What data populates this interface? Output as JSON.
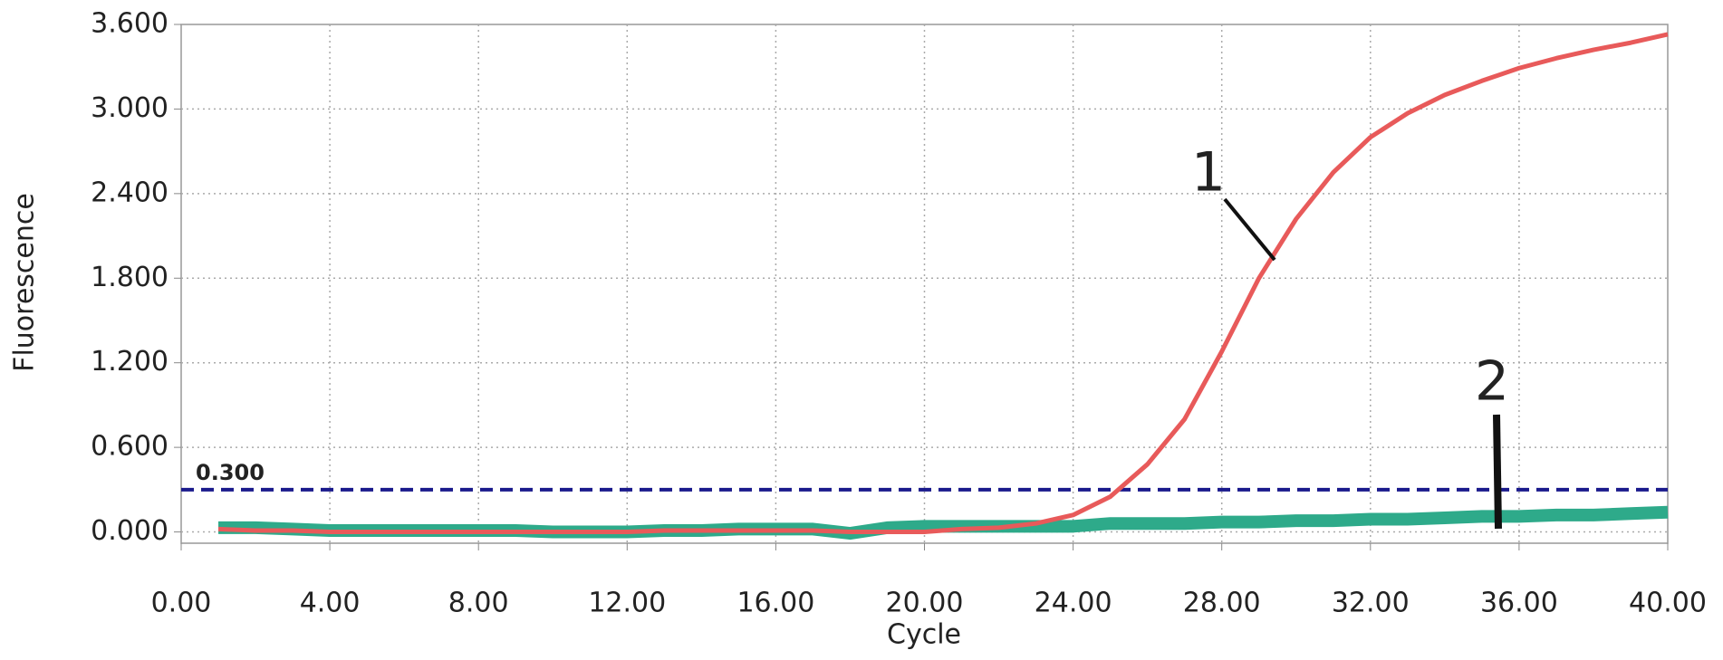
{
  "chart_data": {
    "type": "line",
    "x_label": "Cycle",
    "y_label": "Fluorescence",
    "x": [
      1,
      2,
      3,
      4,
      5,
      6,
      7,
      8,
      9,
      10,
      11,
      12,
      13,
      14,
      15,
      16,
      17,
      18,
      19,
      20,
      21,
      22,
      23,
      24,
      25,
      26,
      27,
      28,
      29,
      30,
      31,
      32,
      33,
      34,
      35,
      36,
      37,
      38,
      39,
      40
    ],
    "series": [
      {
        "color": "#e85a5a",
        "values": [
          0.02,
          0.01,
          0.01,
          0.0,
          0.0,
          0.0,
          0.0,
          0.0,
          0.0,
          0.0,
          0.0,
          0.0,
          0.01,
          0.01,
          0.01,
          0.01,
          0.01,
          0.0,
          0.0,
          0.0,
          0.02,
          0.03,
          0.06,
          0.12,
          0.25,
          0.48,
          0.8,
          1.28,
          1.8,
          2.22,
          2.55,
          2.8,
          2.97,
          3.1,
          3.2,
          3.29,
          3.36,
          3.42,
          3.47,
          3.53
        ]
      },
      {
        "color": "#2eaa8a",
        "values": [
          0.03,
          0.03,
          0.02,
          0.01,
          0.01,
          0.01,
          0.01,
          0.01,
          0.01,
          0.0,
          0.0,
          0.0,
          0.01,
          0.01,
          0.02,
          0.02,
          0.02,
          -0.01,
          0.03,
          0.04,
          0.04,
          0.04,
          0.04,
          0.04,
          0.06,
          0.06,
          0.06,
          0.07,
          0.07,
          0.08,
          0.08,
          0.09,
          0.09,
          0.1,
          0.11,
          0.11,
          0.12,
          0.12,
          0.13,
          0.14
        ]
      }
    ],
    "threshold": {
      "value": 0.3,
      "label": "0.300",
      "color": "#1a1a8c"
    },
    "annotations": [
      {
        "text": "1"
      },
      {
        "text": "2"
      }
    ],
    "xlim": [
      0,
      40
    ],
    "xticks": [
      {
        "value": 0,
        "label": "0.00"
      },
      {
        "value": 4,
        "label": "4.00"
      },
      {
        "value": 8,
        "label": "8.00"
      },
      {
        "value": 12,
        "label": "12.00"
      },
      {
        "value": 16,
        "label": "16.00"
      },
      {
        "value": 20,
        "label": "20.00"
      },
      {
        "value": 24,
        "label": "24.00"
      },
      {
        "value": 28,
        "label": "28.00"
      },
      {
        "value": 32,
        "label": "32.00"
      },
      {
        "value": 36,
        "label": "36.00"
      },
      {
        "value": 40,
        "label": "40.00"
      }
    ],
    "ylim": [
      -0.08,
      3.6
    ],
    "yticks": [
      {
        "value": 0,
        "label": "0.000"
      },
      {
        "value": 0.6,
        "label": "0.600"
      },
      {
        "value": 1.2,
        "label": "1.200"
      },
      {
        "value": 1.8,
        "label": "1.800"
      },
      {
        "value": 2.4,
        "label": "2.400"
      },
      {
        "value": 3.0,
        "label": "3.000"
      },
      {
        "value": 3.6,
        "label": "3.600"
      }
    ],
    "grid": true
  }
}
